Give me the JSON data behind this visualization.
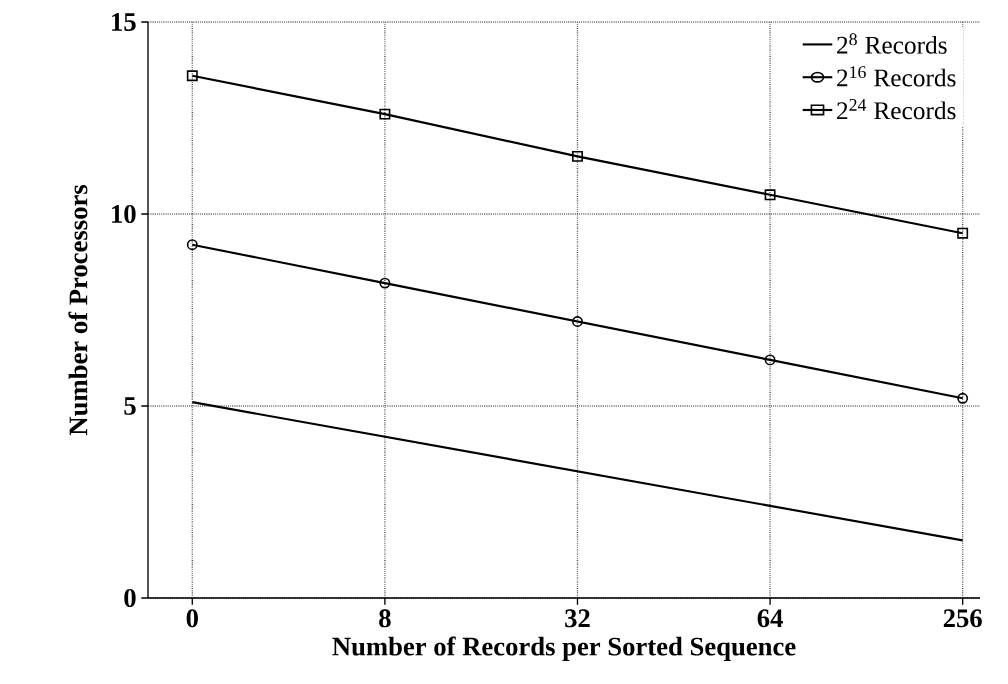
{
  "chart_data": {
    "type": "line",
    "xlabel": "Number of Records per Sorted Sequence",
    "ylabel": "Number of Processors",
    "categories": [
      "0",
      "8",
      "32",
      "64",
      "256"
    ],
    "ylim": [
      0,
      15
    ],
    "yticks": [
      0,
      5,
      10,
      15
    ],
    "grid": true,
    "legend": "top right",
    "series": [
      {
        "name": "2$^{8}$   Records",
        "color": "#000000",
        "marker": "none",
        "values": [
          5.1,
          4.2,
          3.3,
          2.4,
          1.5
        ]
      },
      {
        "name": "2$^{16}$   Records",
        "color": "#000000",
        "marker": "circle",
        "values": [
          9.2,
          8.2,
          7.2,
          6.2,
          5.2
        ]
      },
      {
        "name": "2$^{24}$   Records",
        "color": "#000000",
        "marker": "square",
        "values": [
          13.6,
          12.6,
          11.5,
          10.5,
          9.5
        ]
      }
    ]
  }
}
